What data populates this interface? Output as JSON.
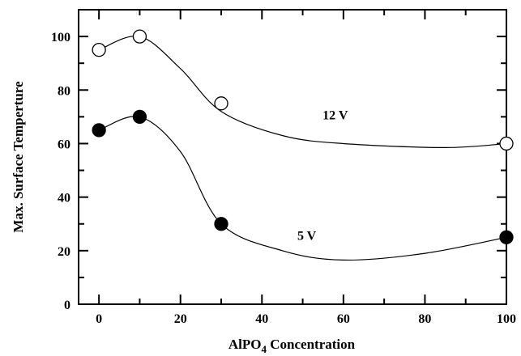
{
  "chart_data": {
    "type": "scatter",
    "xlabel": "AlPO",
    "xlabel_sub": "4",
    "xlabel_rest": " Concentration",
    "ylabel": "Max. Surface Temperture",
    "xlim": [
      -5,
      100
    ],
    "ylim": [
      0,
      110
    ],
    "xticks": [
      0,
      20,
      40,
      60,
      80,
      100
    ],
    "yticks": [
      0,
      20,
      40,
      60,
      80,
      100
    ],
    "grid": false,
    "series": [
      {
        "name": "12 V",
        "marker": "open-circle",
        "x": [
          0,
          10,
          30,
          100
        ],
        "y": [
          95,
          100,
          75,
          60
        ],
        "fit_curve": [
          [
            0,
            95
          ],
          [
            10,
            100
          ],
          [
            20,
            88
          ],
          [
            30,
            72
          ],
          [
            45,
            63
          ],
          [
            60,
            60
          ],
          [
            85,
            58.5
          ],
          [
            100,
            60
          ]
        ],
        "label_at": [
          58,
          69
        ]
      },
      {
        "name": "5 V",
        "marker": "filled-circle",
        "x": [
          0,
          10,
          30,
          100
        ],
        "y": [
          65,
          70,
          30,
          25
        ],
        "fit_curve": [
          [
            0,
            65
          ],
          [
            10,
            70
          ],
          [
            20,
            57
          ],
          [
            30,
            30
          ],
          [
            45,
            20
          ],
          [
            60,
            16.5
          ],
          [
            80,
            19
          ],
          [
            100,
            25
          ]
        ],
        "label_at": [
          51,
          24
        ]
      }
    ]
  }
}
